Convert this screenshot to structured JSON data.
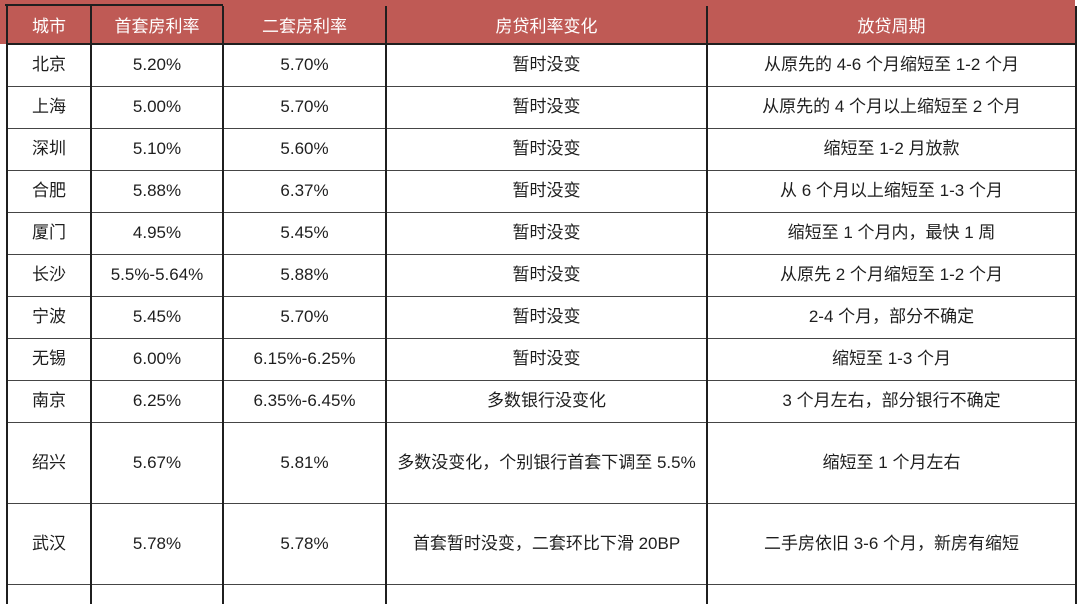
{
  "colors": {
    "header-bg": "#BF5A55",
    "header-text": "#FFFFFF",
    "body-text": "#1E1E1E",
    "border-dark": "#1F1F1F",
    "border-mid": "#454545",
    "page-bg": "#FFFFFF"
  },
  "table": {
    "columns": [
      {
        "label": "城市"
      },
      {
        "label": "首套房利率"
      },
      {
        "label": "二套房利率"
      },
      {
        "label": "房贷利率变化"
      },
      {
        "label": "放贷周期"
      }
    ],
    "rows": [
      {
        "tall": false,
        "cells": [
          "北京",
          "5.20%",
          "5.70%",
          "暂时没变",
          "从原先的 4-6 个月缩短至 1-2 个月"
        ]
      },
      {
        "tall": false,
        "cells": [
          "上海",
          "5.00%",
          "5.70%",
          "暂时没变",
          "从原先的 4 个月以上缩短至 2 个月"
        ]
      },
      {
        "tall": false,
        "cells": [
          "深圳",
          "5.10%",
          "5.60%",
          "暂时没变",
          "缩短至 1-2 月放款"
        ]
      },
      {
        "tall": false,
        "cells": [
          "合肥",
          "5.88%",
          "6.37%",
          "暂时没变",
          "从 6 个月以上缩短至 1-3 个月"
        ]
      },
      {
        "tall": false,
        "cells": [
          "厦门",
          "4.95%",
          "5.45%",
          "暂时没变",
          "缩短至 1 个月内，最快 1 周"
        ]
      },
      {
        "tall": false,
        "cells": [
          "长沙",
          "5.5%-5.64%",
          "5.88%",
          "暂时没变",
          "从原先 2 个月缩短至 1-2 个月"
        ]
      },
      {
        "tall": false,
        "cells": [
          "宁波",
          "5.45%",
          "5.70%",
          "暂时没变",
          "2-4 个月，部分不确定"
        ]
      },
      {
        "tall": false,
        "cells": [
          "无锡",
          "6.00%",
          "6.15%-6.25%",
          "暂时没变",
          "缩短至 1-3 个月"
        ]
      },
      {
        "tall": false,
        "cells": [
          "南京",
          "6.25%",
          "6.35%-6.45%",
          "多数银行没变化",
          "3 个月左右，部分银行不确定"
        ]
      },
      {
        "tall": true,
        "cells": [
          "绍兴",
          "5.67%",
          "5.81%",
          "多数没变化，个别银行首套下调至 5.5%",
          "缩短至 1 个月左右"
        ]
      },
      {
        "tall": true,
        "cells": [
          "武汉",
          "5.78%",
          "5.78%",
          "首套暂时没变，二套环比下滑 20BP",
          "二手房依旧 3-6 个月，新房有缩短"
        ]
      }
    ]
  }
}
